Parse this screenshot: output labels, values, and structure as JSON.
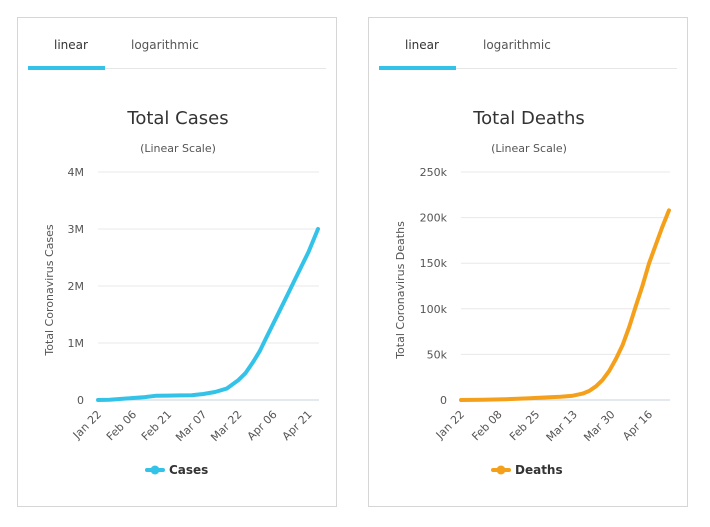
{
  "panels": [
    {
      "tabs": [
        {
          "label": "linear",
          "active": true
        },
        {
          "label": "logarithmic",
          "active": false
        }
      ],
      "accent": "#33c3e8"
    },
    {
      "tabs": [
        {
          "label": "linear",
          "active": true
        },
        {
          "label": "logarithmic",
          "active": false
        }
      ],
      "accent": "#33c3e8"
    }
  ],
  "chart_data": [
    {
      "type": "line",
      "title": "Total Cases",
      "subtitle": "(Linear Scale)",
      "ylabel": "Total Coronavirus Cases",
      "xlabel": "",
      "ylim": [
        0,
        4000000
      ],
      "y_ticks": [
        0,
        1000000,
        2000000,
        3000000,
        4000000
      ],
      "y_tick_labels": [
        "0",
        "1M",
        "2M",
        "3M",
        "4M"
      ],
      "x_range_days": [
        0,
        94
      ],
      "x_tick_days": [
        0,
        15,
        30,
        45,
        60,
        75,
        90
      ],
      "x_tick_labels": [
        "Jan 22",
        "Feb 06",
        "Feb 21",
        "Mar 07",
        "Mar 22",
        "Apr 06",
        "Apr 21"
      ],
      "series": [
        {
          "name": "Cases",
          "color": "#33c3e8",
          "x": [
            0,
            5,
            10,
            15,
            20,
            25,
            30,
            35,
            40,
            45,
            50,
            55,
            58,
            60,
            63,
            66,
            69,
            72,
            75,
            78,
            81,
            84,
            87,
            90,
            94
          ],
          "y": [
            555,
            6000,
            20000,
            35000,
            50000,
            75000,
            77000,
            80000,
            85000,
            105000,
            140000,
            200000,
            290000,
            350000,
            470000,
            650000,
            850000,
            1100000,
            1350000,
            1600000,
            1850000,
            2100000,
            2350000,
            2600000,
            3000000
          ]
        }
      ],
      "legend": "bottom-center"
    },
    {
      "type": "line",
      "title": "Total Deaths",
      "subtitle": "(Linear Scale)",
      "ylabel": "Total Coronavirus Deaths",
      "xlabel": "",
      "ylim": [
        0,
        250000
      ],
      "y_ticks": [
        0,
        50000,
        100000,
        150000,
        200000,
        250000
      ],
      "y_tick_labels": [
        "0",
        "50k",
        "100k",
        "150k",
        "200k",
        "250k"
      ],
      "x_range_days": [
        0,
        94
      ],
      "x_tick_days": [
        0,
        17,
        34,
        51,
        68,
        85
      ],
      "x_tick_labels": [
        "Jan 22",
        "Feb 08",
        "Feb 25",
        "Mar 13",
        "Mar 30",
        "Apr 16"
      ],
      "series": [
        {
          "name": "Deaths",
          "color": "#f5a01a",
          "x": [
            0,
            10,
            20,
            30,
            40,
            45,
            50,
            55,
            58,
            61,
            64,
            67,
            70,
            73,
            76,
            79,
            82,
            85,
            88,
            91,
            94
          ],
          "y": [
            17,
            250,
            900,
            1800,
            3000,
            3500,
            4500,
            7000,
            10000,
            15000,
            22000,
            32000,
            45000,
            60000,
            80000,
            103000,
            125000,
            150000,
            170000,
            190000,
            208000
          ]
        }
      ],
      "legend": "bottom-center"
    }
  ]
}
